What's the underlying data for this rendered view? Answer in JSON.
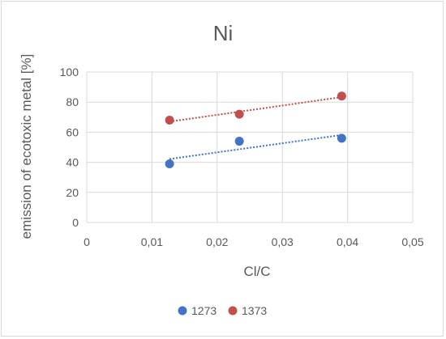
{
  "chart_data": {
    "type": "scatter",
    "title": "Ni",
    "xlabel": "Cl/C",
    "ylabel": "emission of ecotoxic metal [%]",
    "xlim": [
      0,
      0.05
    ],
    "ylim": [
      0,
      100
    ],
    "x_ticks": [
      "0",
      "0,01",
      "0,02",
      "0,03",
      "0,04",
      "0,05"
    ],
    "y_ticks": [
      "0",
      "20",
      "40",
      "60",
      "80",
      "100"
    ],
    "grid": true,
    "legend": "bottom",
    "trendline": "linear-dotted",
    "series": [
      {
        "name": "1273",
        "color": "#4472c4",
        "points": [
          [
            0.0127,
            39
          ],
          [
            0.0234,
            54
          ],
          [
            0.0391,
            56
          ]
        ]
      },
      {
        "name": "1373",
        "color": "#c0504d",
        "points": [
          [
            0.0127,
            68
          ],
          [
            0.0234,
            72
          ],
          [
            0.0391,
            84
          ]
        ]
      }
    ]
  }
}
